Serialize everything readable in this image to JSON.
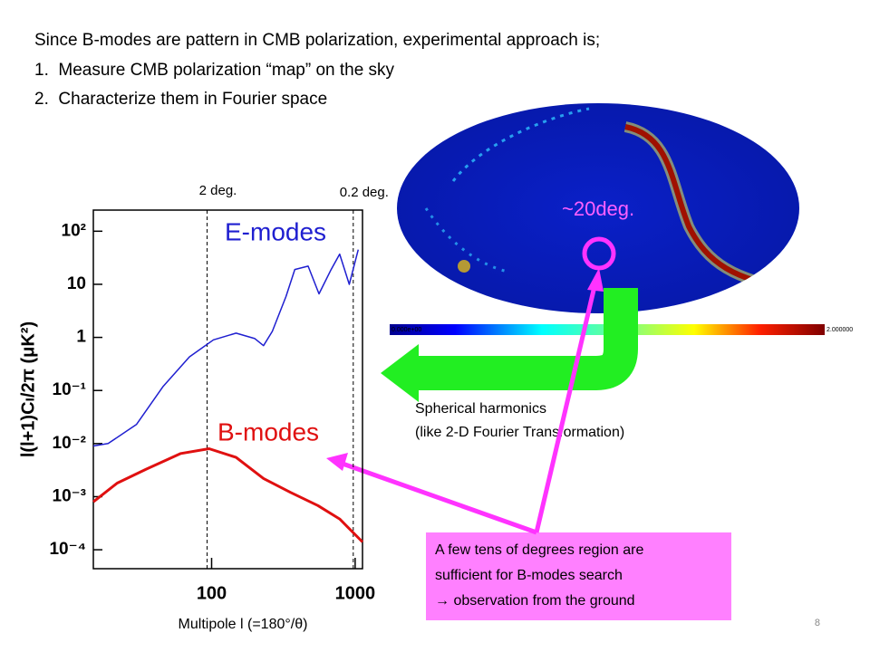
{
  "slide": {
    "intro": "Since B-modes are pattern in CMB polarization, experimental approach is;",
    "steps": [
      "1.  Measure CMB polarization “map” on the sky",
      "2.  Characterize them in Fourier space"
    ],
    "colorbar_labels": [
      "0.000e+00",
      "2.000000"
    ],
    "map_scale": "~20deg.",
    "transform": [
      "Spherical harmonics",
      "(like 2-D Fourier Transformation)"
    ],
    "note": [
      "A few tens of degrees region are",
      "sufficient for B-modes search",
      "→ observation from the ground"
    ],
    "page_number": "8"
  },
  "chart_data": {
    "type": "line",
    "x_label": "Multipole l (=180°/θ)",
    "y_label": "l(l+1)Cₗ/2π (μK²)",
    "log_x": true,
    "log_y": true,
    "xlim": [
      15,
      1125
    ],
    "ylim": [
      4.4e-05,
      250
    ],
    "xticks": [
      100,
      1000
    ],
    "yticks": [
      {
        "value": 100,
        "label": "10²"
      },
      10,
      1,
      {
        "value": 0.1,
        "label": "10⁻¹"
      },
      {
        "value": 0.01,
        "label": "10⁻²"
      },
      {
        "value": 0.001,
        "label": "10⁻³"
      },
      {
        "value": 0.0001,
        "label": "10⁻⁴"
      }
    ],
    "annotations": [
      {
        "text": "2 deg.",
        "x": 93
      },
      {
        "text": "0.2 deg.",
        "x": 970
      }
    ],
    "series": [
      {
        "name": "E-modes",
        "color": "#1f1fd0",
        "x": [
          15,
          19,
          30,
          46,
          70,
          103,
          148,
          200,
          230,
          265,
          330,
          380,
          470,
          560,
          680,
          780,
          910,
          1050
        ],
        "values": [
          0.009,
          0.01,
          0.023,
          0.12,
          0.43,
          0.9,
          1.2,
          0.95,
          0.7,
          1.3,
          5.9,
          19,
          22,
          6.6,
          19,
          37,
          10,
          45
        ]
      },
      {
        "name": "B-modes",
        "color": "#e01010",
        "x": [
          15,
          22,
          35,
          61,
          96,
          148,
          230,
          355,
          550,
          780,
          1125
        ],
        "values": [
          0.0008,
          0.0018,
          0.0033,
          0.0065,
          0.008,
          0.0055,
          0.0022,
          0.0012,
          0.00068,
          0.00038,
          0.00014
        ]
      }
    ]
  }
}
